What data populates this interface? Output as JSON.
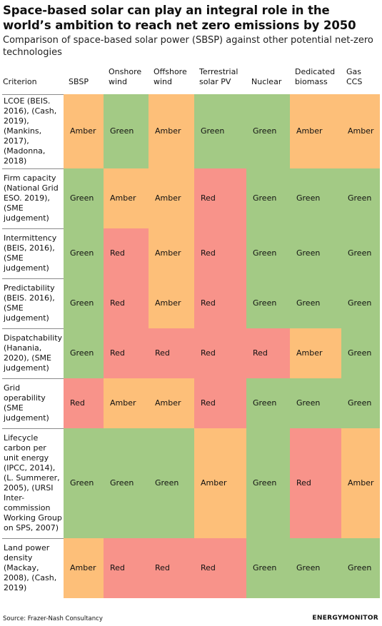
{
  "title": "Space-based solar can play an integral role in the world’s ambition to reach net zero emissions by 2050",
  "subtitle": "Comparison of space-based solar power (SBSP) against other potential net-zero technologies",
  "source": "Source: Frazer-Nash Consultancy",
  "brand": "ENERGYMONITOR",
  "colors": {
    "Green": "#a3ca85",
    "Amber": "#fdbf79",
    "Red": "#f8938a"
  },
  "chart_data": {
    "type": "table",
    "columns": [
      "Criterion",
      "SBSP",
      "Onshore wind",
      "Offshore wind",
      "Terrestrial solar PV",
      "Nuclear",
      "Dedicated biomass",
      "Gas CCS"
    ],
    "rows": [
      {
        "criterion": "LCOE (BEIS. 2016), (Cash, 2019), (Mankins, 2017), (Madonna, 2018)",
        "ratings": [
          "Amber",
          "Green",
          "Amber",
          "Green",
          "Green",
          "Amber",
          "Amber"
        ]
      },
      {
        "criterion": "Firm capacity (National Grid ESO. 2019), (SME judgement)",
        "ratings": [
          "Green",
          "Amber",
          "Amber",
          "Red",
          "Green",
          "Green",
          "Green"
        ]
      },
      {
        "criterion": "Intermittency (BEIS, 2016), (SME judgement)",
        "ratings": [
          "Green",
          "Red",
          "Amber",
          "Red",
          "Green",
          "Green",
          "Green"
        ]
      },
      {
        "criterion": "Predictability (BEIS. 2016), (SME judgement)",
        "ratings": [
          "Green",
          "Red",
          "Amber",
          "Red",
          "Green",
          "Green",
          "Green"
        ]
      },
      {
        "criterion": "Dispatchability (Hanania, 2020), (SME judgement)",
        "ratings": [
          "Green",
          "Red",
          "Red",
          "Red",
          "Red",
          "Amber",
          "Green"
        ]
      },
      {
        "criterion": "Grid operability (SME judgement)",
        "ratings": [
          "Red",
          "Amber",
          "Amber",
          "Red",
          "Green",
          "Green",
          "Green"
        ]
      },
      {
        "criterion": "Lifecycle carbon per unit energy (IPCC, 2014), (L. Summerer, 2005), (URSI Inter-commission Working Group on SPS, 2007)",
        "ratings": [
          "Green",
          "Green",
          "Green",
          "Amber",
          "Green",
          "Red",
          "Amber"
        ]
      },
      {
        "criterion": "Land power density (Mackay, 2008), (Cash, 2019)",
        "ratings": [
          "Amber",
          "Red",
          "Red",
          "Red",
          "Green",
          "Green",
          "Green"
        ]
      }
    ]
  }
}
